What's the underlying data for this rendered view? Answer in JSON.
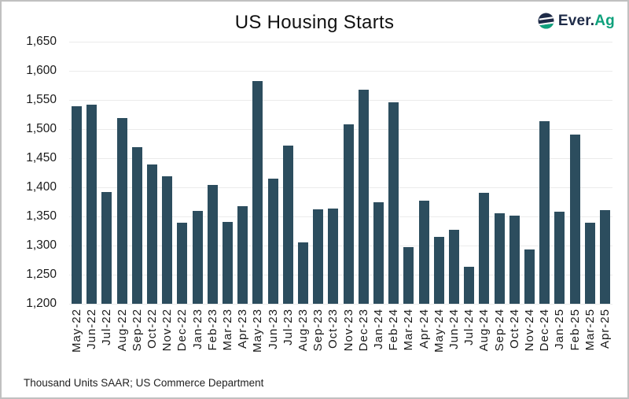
{
  "header": {
    "title": "US Housing Starts"
  },
  "logo": {
    "icon": "ever-ag-globe-icon",
    "text_primary": "Ever.",
    "text_accent": "Ag",
    "primary_color": "#1e2b48",
    "accent_color": "#0fa17c"
  },
  "footnote": "Thousand Units SAAR; US Commerce Department",
  "colors": {
    "bar": "#2c4d5e",
    "gridline": "#ebebeb",
    "text": "#1a1a1a",
    "frame_border": "#c0c0c0"
  },
  "chart_data": {
    "type": "bar",
    "title": "US Housing Starts",
    "categories": [
      "May-22",
      "Jun-22",
      "Jul-22",
      "Aug-22",
      "Sep-22",
      "Oct-22",
      "Nov-22",
      "Dec-22",
      "Jan-23",
      "Feb-23",
      "Mar-23",
      "Apr-23",
      "May-23",
      "Jun-23",
      "Jul-23",
      "Aug-23",
      "Sep-23",
      "Oct-23",
      "Nov-23",
      "Dec-23",
      "Jan-24",
      "Feb-24",
      "Mar-24",
      "Apr-24",
      "May-24",
      "Jun-24",
      "Jul-24",
      "Aug-24",
      "Sep-24",
      "Oct-24",
      "Nov-24",
      "Dec-24",
      "Jan-25",
      "Feb-25",
      "Mar-25",
      "Apr-25"
    ],
    "values": [
      1539,
      1542,
      1392,
      1519,
      1469,
      1439,
      1419,
      1339,
      1360,
      1404,
      1341,
      1367,
      1583,
      1415,
      1472,
      1305,
      1362,
      1364,
      1508,
      1567,
      1375,
      1546,
      1297,
      1377,
      1315,
      1327,
      1264,
      1390,
      1356,
      1351,
      1293,
      1513,
      1358,
      1490,
      1339,
      1361
    ],
    "ylim": [
      1200,
      1650
    ],
    "ytick_step": 50,
    "ytick_labels": [
      "1,650",
      "1,600",
      "1,550",
      "1,500",
      "1,450",
      "1,400",
      "1,350",
      "1,300",
      "1,250",
      "1,200"
    ],
    "xlabel": "",
    "ylabel": "",
    "grid": "horizontal",
    "legend": "none",
    "units": "Thousand Units SAAR",
    "source": "US Commerce Department"
  }
}
